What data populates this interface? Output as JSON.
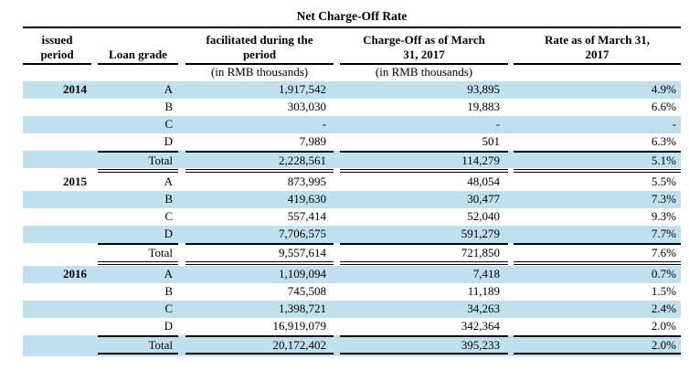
{
  "title": "Net Charge-Off Rate",
  "colors": {
    "stripe": "#bfe0ec",
    "line": "#000000",
    "text": "#000000"
  },
  "header": {
    "issued_line1": "issued",
    "issued_line2": "period",
    "loan_grade": "Loan grade",
    "facilitated_line1": "facilitated during the",
    "facilitated_line2": "period",
    "charge_off_line1": "Charge-Off as of March",
    "charge_off_line2": "31, 2017",
    "rate_line1": "Rate as of March 31,",
    "rate_line2": "2017",
    "unit_note": "(in RMB thousands)"
  },
  "table": {
    "groups": [
      {
        "year": "2014",
        "rows": [
          {
            "grade": "A",
            "facilitated": "1,917,542",
            "charge_off": "93,895",
            "rate": "4.9%"
          },
          {
            "grade": "B",
            "facilitated": "303,030",
            "charge_off": "19,883",
            "rate": "6.6%"
          },
          {
            "grade": "C",
            "facilitated": "-",
            "charge_off": "-",
            "rate": "-"
          },
          {
            "grade": "D",
            "facilitated": "7,989",
            "charge_off": "501",
            "rate": "6.3%"
          }
        ],
        "total": {
          "label": "Total",
          "facilitated": "2,228,561",
          "charge_off": "114,279",
          "rate": "5.1%"
        }
      },
      {
        "year": "2015",
        "rows": [
          {
            "grade": "A",
            "facilitated": "873,995",
            "charge_off": "48,054",
            "rate": "5.5%"
          },
          {
            "grade": "B",
            "facilitated": "419,630",
            "charge_off": "30,477",
            "rate": "7.3%"
          },
          {
            "grade": "C",
            "facilitated": "557,414",
            "charge_off": "52,040",
            "rate": "9.3%"
          },
          {
            "grade": "D",
            "facilitated": "7,706,575",
            "charge_off": "591,279",
            "rate": "7.7%"
          }
        ],
        "total": {
          "label": "Total",
          "facilitated": "9,557,614",
          "charge_off": "721,850",
          "rate": "7.6%"
        }
      },
      {
        "year": "2016",
        "rows": [
          {
            "grade": "A",
            "facilitated": "1,109,094",
            "charge_off": "7,418",
            "rate": "0.7%"
          },
          {
            "grade": "B",
            "facilitated": "745,508",
            "charge_off": "11,189",
            "rate": "1.5%"
          },
          {
            "grade": "C",
            "facilitated": "1,398,721",
            "charge_off": "34,263",
            "rate": "2.4%"
          },
          {
            "grade": "D",
            "facilitated": "16,919,079",
            "charge_off": "342,364",
            "rate": "2.0%"
          }
        ],
        "total": {
          "label": "Total",
          "facilitated": "20,172,402",
          "charge_off": "395,233",
          "rate": "2.0%"
        }
      }
    ]
  }
}
